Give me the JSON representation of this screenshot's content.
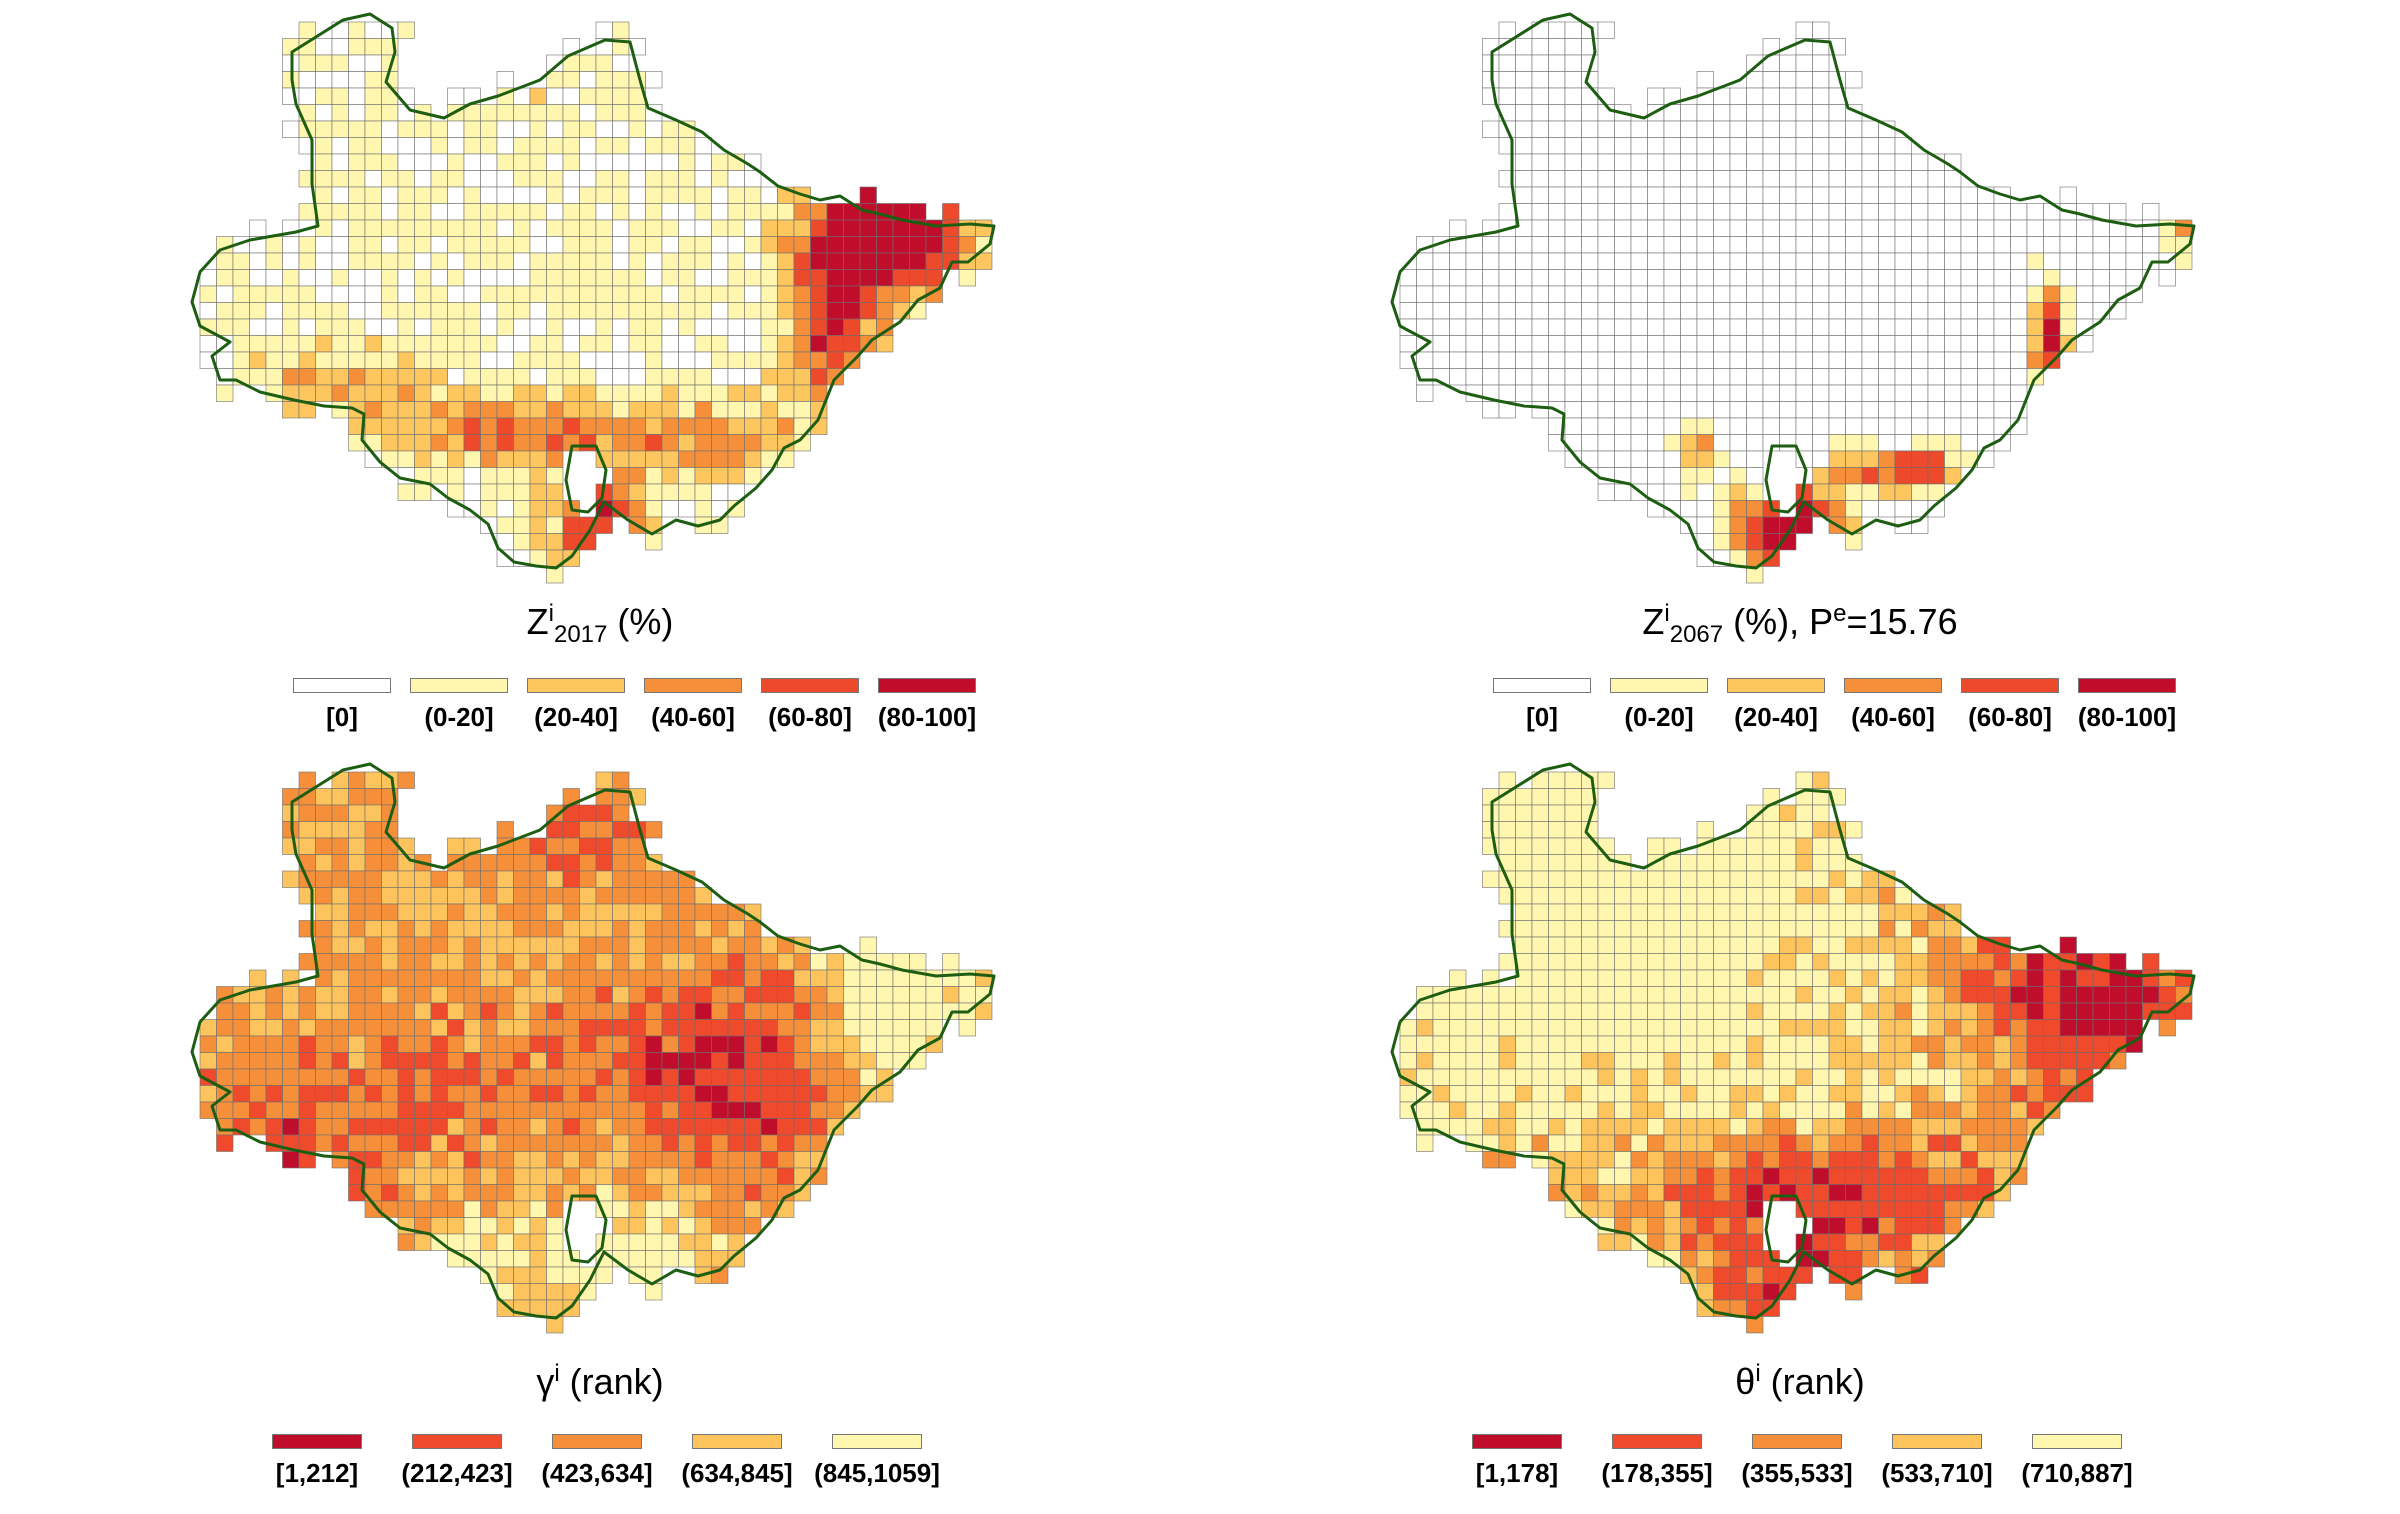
{
  "colors": {
    "z0": "#ffffff",
    "z1": "#fff6b0",
    "z2": "#fdc65e",
    "z3": "#f58f3a",
    "z4": "#ec4a2a",
    "z5": "#c10d2c",
    "r1": "#c10d2c",
    "r2": "#ee4a2b",
    "r3": "#f58f3a",
    "r4": "#fdc45e",
    "r5": "#fff6b0",
    "border": "#1e5e12",
    "grid": "#6e6e6e"
  },
  "panels": [
    {
      "id": "z2017",
      "title": {
        "main": "Z",
        "sup": "i",
        "sub": "2017",
        "after": " (%)",
        "sup2": "",
        "after2": ""
      },
      "legend": [
        "[0]",
        "(0-20]",
        "(20-40]",
        "(40-60]",
        "(60-80]",
        "(80-100]"
      ]
    },
    {
      "id": "z2067",
      "title": {
        "main": "Z",
        "sup": "i",
        "sub": "2067",
        "after": " (%), P",
        "sup2": "e",
        "after2": "=15.76"
      },
      "legend": [
        "[0]",
        "(0-20]",
        "(20-40]",
        "(40-60]",
        "(60-80]",
        "(80-100]"
      ]
    },
    {
      "id": "gamma",
      "title": {
        "main": "γ",
        "sup": "i",
        "sub": "",
        "after": " (rank)",
        "sup2": "",
        "after2": ""
      },
      "legend": [
        "[1,212]",
        "(212,423]",
        "(423,634]",
        "(634,845]",
        "(845,1059]"
      ]
    },
    {
      "id": "theta",
      "title": {
        "main": "θ",
        "sup": "i",
        "sub": "",
        "after": " (rank)",
        "sup2": "",
        "after2": ""
      },
      "legend": [
        "[1,178]",
        "(178,355]",
        "(355,533]",
        "(533,710]",
        "(710,887]"
      ]
    }
  ]
}
